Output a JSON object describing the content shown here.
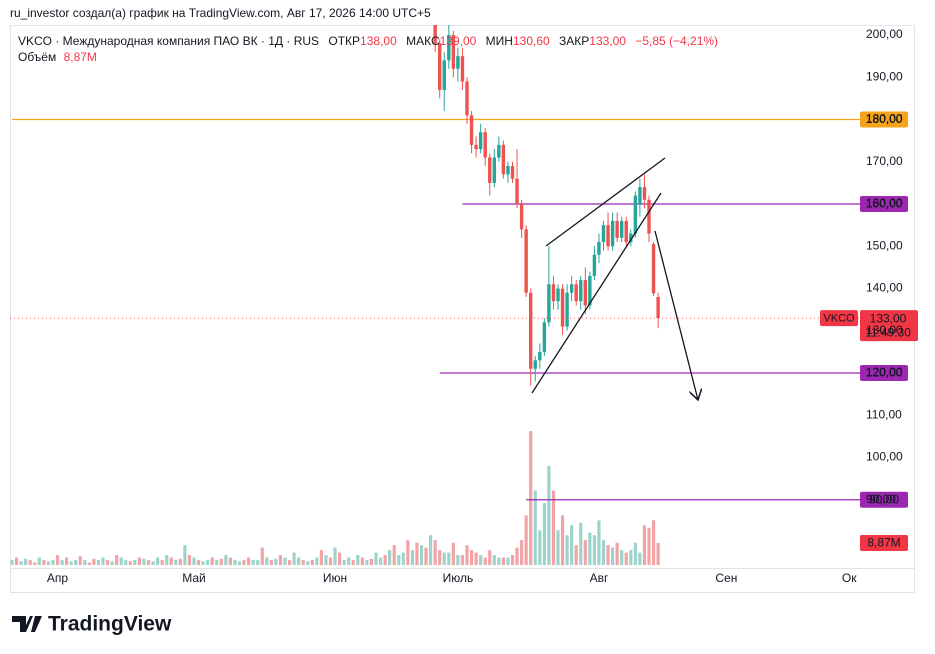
{
  "header": "ru_investor создал(а) график на TradingView.com, Авг 17, 2026 14:00 UTC+5",
  "footer": "TradingView",
  "chart_data": {
    "type": "candlestick",
    "title": "VKCO · Международная компания ПАО ВК · 1Д · RUS",
    "legend": {
      "open_label": "ОТКР",
      "open": "138,00",
      "high_label": "МАКС",
      "high": "139,00",
      "low_label": "МИН",
      "low": "130,60",
      "close_label": "ЗАКР",
      "close": "133,00",
      "change": "−5,85 (−4,21%)",
      "volume_label": "Объём"
    },
    "symbol": "VKCO",
    "last_price_label": "133,00",
    "countdown": "11:49:30",
    "last_volume_label": "8,87M",
    "up_color": "#26a69a",
    "down_color": "#ef5350",
    "volume_up_color": "#9ed3cd",
    "volume_down_color": "#f3a3a6",
    "grid": false,
    "ylim": [
      73.85,
      202.37
    ],
    "vlim": [
      0,
      100
    ],
    "yticks": [
      {
        "value": 200,
        "label": "200,00"
      },
      {
        "value": 190,
        "label": "190,00"
      },
      {
        "value": 180,
        "label": "180,00"
      },
      {
        "value": 170,
        "label": "170,00"
      },
      {
        "value": 160,
        "label": "160,00"
      },
      {
        "value": 150,
        "label": "150,00"
      },
      {
        "value": 140,
        "label": "140,00"
      },
      {
        "value": 130,
        "label": "130,00"
      },
      {
        "value": 120,
        "label": "120,00"
      },
      {
        "value": 110,
        "label": "110,00"
      },
      {
        "value": 100,
        "label": "100,00"
      },
      {
        "value": 90,
        "label": "90,00"
      }
    ],
    "levels": [
      {
        "value": 180,
        "label": "180,00",
        "color": "#f7a21b",
        "from": 0
      },
      {
        "value": 160,
        "label": "160,00",
        "color": "#9c27b0",
        "from": 99
      },
      {
        "value": 120,
        "label": "120,00",
        "color": "#9c27b0",
        "from": 94
      },
      {
        "value": 90,
        "label": "90,00",
        "color": "#9c27b0",
        "from": 113
      }
    ],
    "categories": [
      null,
      null,
      null,
      null,
      null,
      null,
      null,
      null,
      null,
      null,
      "Апр",
      null,
      null,
      null,
      null,
      null,
      null,
      null,
      null,
      null,
      null,
      null,
      null,
      null,
      null,
      null,
      null,
      null,
      null,
      null,
      null,
      null,
      null,
      null,
      null,
      null,
      null,
      null,
      null,
      null,
      "Май",
      null,
      null,
      null,
      null,
      null,
      null,
      null,
      null,
      null,
      null,
      null,
      null,
      null,
      null,
      null,
      null,
      null,
      null,
      null,
      null,
      null,
      null,
      null,
      null,
      null,
      null,
      null,
      null,
      null,
      null,
      "Июн",
      null,
      null,
      null,
      null,
      null,
      null,
      null,
      null,
      null,
      null,
      null,
      null,
      null,
      null,
      null,
      null,
      null,
      null,
      null,
      null,
      null,
      null,
      null,
      null,
      null,
      null,
      "Июль",
      null,
      null,
      null,
      null,
      null,
      null,
      null,
      null,
      null,
      null,
      null,
      null,
      null,
      null,
      null,
      null,
      null,
      null,
      null,
      null,
      null,
      null,
      null,
      null,
      null,
      null,
      null,
      null,
      null,
      null,
      "Авг",
      null,
      null,
      null,
      null,
      null,
      null,
      null,
      null,
      null,
      null,
      null,
      null,
      null,
      null,
      null,
      null,
      null,
      null,
      null,
      null,
      null,
      null,
      null,
      null,
      null,
      null,
      null,
      "Сен",
      null,
      null,
      null,
      null,
      null,
      null,
      null,
      null,
      null,
      null,
      null,
      null,
      null,
      null,
      null,
      null,
      null,
      null,
      null,
      null,
      null,
      null,
      null,
      null,
      null,
      null,
      "Ок"
    ],
    "candles": [
      null,
      null,
      null,
      null,
      null,
      null,
      null,
      null,
      null,
      null,
      null,
      null,
      null,
      null,
      null,
      null,
      null,
      null,
      null,
      null,
      null,
      null,
      null,
      null,
      null,
      null,
      null,
      null,
      null,
      null,
      null,
      null,
      null,
      null,
      null,
      null,
      null,
      null,
      null,
      null,
      null,
      null,
      null,
      null,
      null,
      null,
      null,
      null,
      null,
      null,
      null,
      null,
      null,
      null,
      null,
      null,
      null,
      null,
      null,
      null,
      null,
      null,
      null,
      null,
      null,
      null,
      null,
      null,
      null,
      null,
      null,
      null,
      null,
      null,
      null,
      null,
      null,
      null,
      null,
      null,
      null,
      null,
      null,
      null,
      null,
      null,
      null,
      null,
      null,
      null,
      null,
      null,
      null,
      [
        203,
        206,
        196,
        198
      ],
      [
        198,
        199,
        185,
        187
      ],
      [
        187,
        196,
        182,
        194
      ],
      [
        194,
        203,
        192,
        200
      ],
      [
        200,
        201,
        190,
        192
      ],
      [
        192,
        197,
        189,
        195
      ],
      [
        195,
        197,
        187,
        189
      ],
      [
        189,
        190,
        179,
        181
      ],
      [
        181,
        182,
        172,
        174
      ],
      [
        174,
        176,
        171,
        173
      ],
      [
        173,
        179,
        172,
        177
      ],
      [
        177,
        178,
        169,
        171
      ],
      [
        171,
        172,
        162,
        165
      ],
      [
        165,
        173,
        164,
        171
      ],
      [
        171,
        176,
        170,
        174
      ],
      [
        174,
        175,
        166,
        167
      ],
      [
        167,
        170,
        165,
        169
      ],
      [
        169,
        170,
        165,
        166
      ],
      [
        166,
        173,
        159,
        160
      ],
      [
        160,
        161,
        152,
        154
      ],
      [
        154,
        155,
        138,
        139
      ],
      [
        139,
        140,
        117,
        121
      ],
      [
        121,
        124,
        118,
        123
      ],
      [
        123,
        127,
        121,
        125
      ],
      [
        125,
        133,
        124,
        132
      ],
      [
        132,
        150,
        131,
        141
      ],
      [
        141,
        143,
        135,
        137
      ],
      [
        137,
        141,
        135,
        140
      ],
      [
        140,
        141,
        129,
        131
      ],
      [
        131,
        141,
        130,
        139
      ],
      [
        139,
        143,
        137,
        141
      ],
      [
        141,
        142,
        136,
        137
      ],
      [
        137,
        143,
        135,
        142
      ],
      [
        142,
        145,
        134,
        136
      ],
      [
        136,
        144,
        135,
        143
      ],
      [
        143,
        150,
        142,
        148
      ],
      [
        148,
        153,
        146,
        151
      ],
      [
        151,
        156,
        149,
        155
      ],
      [
        155,
        158,
        149,
        150
      ],
      [
        150,
        158,
        149,
        156
      ],
      [
        156,
        158,
        151,
        152
      ],
      [
        152,
        157,
        151,
        156
      ],
      [
        156,
        157,
        150,
        151
      ],
      [
        151,
        154,
        150,
        153
      ],
      [
        153,
        163,
        152,
        162
      ],
      [
        160,
        166,
        157,
        164
      ],
      [
        164,
        167,
        159,
        161
      ],
      [
        161,
        162,
        151,
        153
      ],
      [
        150.5,
        151,
        138.2,
        138.85
      ],
      [
        138,
        139,
        130.6,
        133
      ],
      null,
      null,
      null,
      null,
      null,
      null,
      null,
      null,
      null,
      null,
      null,
      null,
      null,
      null,
      null,
      null,
      null,
      null,
      null,
      null,
      null,
      null,
      null,
      null,
      null,
      null,
      null,
      null,
      null,
      null,
      null,
      null,
      null,
      null,
      null,
      null,
      null,
      null,
      null,
      null,
      null,
      null
    ],
    "volume": [
      2,
      3,
      1.5,
      2.5,
      2,
      1,
      3,
      2,
      1.5,
      2,
      4,
      2,
      3,
      1.5,
      2,
      3.5,
      2,
      1,
      2.5,
      2,
      3,
      2,
      1.5,
      4,
      3,
      2,
      1.5,
      2,
      3,
      2.5,
      2,
      1.5,
      3,
      2,
      4,
      3,
      2,
      2.5,
      8,
      4,
      3,
      2,
      1.5,
      2,
      3,
      2,
      2.5,
      4,
      3,
      2,
      1.5,
      2,
      3,
      2,
      2,
      7,
      3,
      2,
      2.5,
      4,
      3,
      2,
      5,
      3,
      2,
      1.5,
      2,
      3,
      6,
      4,
      3,
      7,
      5,
      2,
      3,
      2,
      4,
      3,
      2,
      2.5,
      5,
      3,
      4,
      6,
      8,
      4,
      5,
      10,
      6,
      9,
      8,
      7,
      12,
      10,
      6,
      5,
      5,
      9,
      4,
      4,
      8,
      6,
      5,
      4,
      3,
      6,
      4,
      3,
      3,
      3,
      4,
      7,
      10,
      20,
      54,
      30,
      14,
      25,
      40,
      30,
      14,
      20,
      12,
      16,
      8,
      17,
      10,
      13,
      12,
      18,
      10,
      8,
      7,
      9,
      6,
      5,
      6,
      9,
      5,
      16,
      15,
      18,
      8.87,
      null,
      null,
      null,
      null,
      null,
      null,
      null,
      null,
      null,
      null,
      null,
      null,
      null,
      null,
      null,
      null,
      null,
      null,
      null,
      null,
      null,
      null,
      null,
      null,
      null,
      null,
      null,
      null,
      null,
      null,
      null,
      null,
      null,
      null,
      null,
      null,
      null,
      null,
      null,
      null,
      null,
      null
    ],
    "up": [
      true,
      false,
      true,
      true,
      false,
      false,
      true,
      false,
      true,
      true,
      false,
      true,
      false,
      true,
      true,
      false,
      true,
      false,
      false,
      true,
      true,
      false,
      true,
      false,
      true,
      true,
      false,
      true,
      false,
      true,
      false,
      true,
      true,
      false,
      true,
      false,
      true,
      false,
      true,
      false,
      true,
      false,
      true,
      true,
      false,
      true,
      false,
      true,
      false,
      true,
      true,
      false,
      false,
      true,
      true,
      false,
      true,
      false,
      true,
      false,
      true,
      false,
      true,
      true,
      false,
      true,
      false,
      true,
      false,
      true,
      false,
      true,
      false,
      true,
      true,
      false,
      true,
      false,
      true,
      false,
      true,
      true,
      false,
      true,
      false,
      true,
      true,
      false,
      true,
      false,
      true,
      false,
      true,
      false,
      false,
      true,
      true,
      false,
      true,
      false,
      false,
      false,
      false,
      true,
      false,
      false,
      true,
      true,
      false,
      true,
      false,
      false,
      false,
      false,
      false,
      true,
      true,
      true,
      true,
      false,
      true,
      false,
      true,
      true,
      false,
      true,
      false,
      true,
      true,
      true,
      true,
      false,
      true,
      false,
      true,
      false,
      true,
      true,
      true,
      false,
      false,
      false,
      false,
      null,
      null,
      null,
      null,
      null,
      null,
      null,
      null,
      null,
      null,
      null,
      null,
      null,
      null,
      null,
      null,
      null,
      null,
      null,
      null,
      null,
      null,
      null,
      null,
      null,
      null,
      null,
      null,
      null,
      null,
      null,
      null,
      null,
      null,
      null,
      null,
      null,
      null,
      null,
      null,
      null,
      null
    ]
  }
}
